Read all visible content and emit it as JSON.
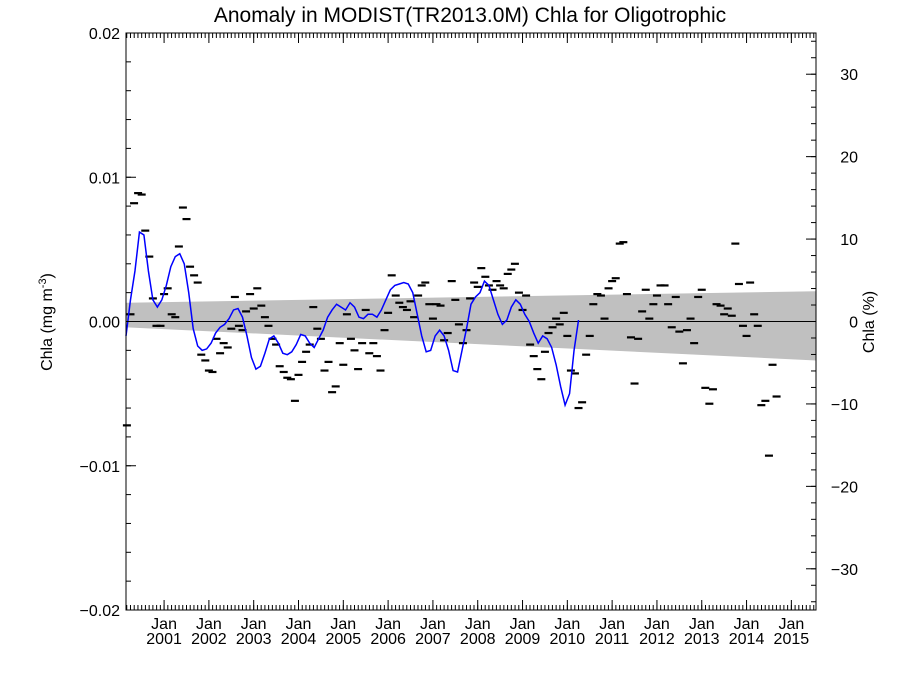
{
  "chart_data": {
    "type": "scatter",
    "title": "Anomaly in MODIST(TR2013.0M) Chla for Oligotrophic",
    "ylabel_left": "Chla (mg m",
    "ylabel_left_sup": "-3",
    "ylabel_left_close": ")",
    "ylabel_right": "Chla (%)",
    "ylim_left": [
      -0.02,
      0.02
    ],
    "ylim_right": [
      -35,
      35
    ],
    "xlim": [
      2000.15,
      2015.55
    ],
    "left_ticks": [
      {
        "value": 0.02,
        "label": "0.02"
      },
      {
        "value": 0.01,
        "label": "0.01"
      },
      {
        "value": 0.0,
        "label": "0.00"
      },
      {
        "value": -0.01,
        "label": "−0.01"
      },
      {
        "value": -0.02,
        "label": "−0.02"
      }
    ],
    "right_ticks": [
      {
        "value": 30,
        "label": "30"
      },
      {
        "value": 20,
        "label": "20"
      },
      {
        "value": 10,
        "label": "10"
      },
      {
        "value": 0,
        "label": "0"
      },
      {
        "value": -10,
        "label": "−10"
      },
      {
        "value": -20,
        "label": "−20"
      },
      {
        "value": -30,
        "label": "−30"
      }
    ],
    "x_ticks": [
      {
        "value": 2001,
        "month": "Jan",
        "year": "2001"
      },
      {
        "value": 2002,
        "month": "Jan",
        "year": "2002"
      },
      {
        "value": 2003,
        "month": "Jan",
        "year": "2003"
      },
      {
        "value": 2004,
        "month": "Jan",
        "year": "2004"
      },
      {
        "value": 2005,
        "month": "Jan",
        "year": "2005"
      },
      {
        "value": 2006,
        "month": "Jan",
        "year": "2006"
      },
      {
        "value": 2007,
        "month": "Jan",
        "year": "2007"
      },
      {
        "value": 2008,
        "month": "Jan",
        "year": "2008"
      },
      {
        "value": 2009,
        "month": "Jan",
        "year": "2009"
      },
      {
        "value": 2010,
        "month": "Jan",
        "year": "2010"
      },
      {
        "value": 2011,
        "month": "Jan",
        "year": "2011"
      },
      {
        "value": 2012,
        "month": "Jan",
        "year": "2012"
      },
      {
        "value": 2013,
        "month": "Jan",
        "year": "2013"
      },
      {
        "value": 2014,
        "month": "Jan",
        "year": "2014"
      },
      {
        "value": 2015,
        "month": "Jan",
        "year": "2015"
      }
    ],
    "trend_band": {
      "x_start": 2000.15,
      "x_end": 2015.55,
      "upper_start": 0.0013,
      "upper_end": 0.0021,
      "lower_start": -0.0004,
      "lower_end": -0.0027
    },
    "monthly_anomalies": [
      {
        "x": 2000.17,
        "y": -0.0072
      },
      {
        "x": 2000.25,
        "y": 0.0005
      },
      {
        "x": 2000.33,
        "y": 0.0082
      },
      {
        "x": 2000.42,
        "y": 0.0089
      },
      {
        "x": 2000.5,
        "y": 0.0088
      },
      {
        "x": 2000.58,
        "y": 0.0063
      },
      {
        "x": 2000.67,
        "y": 0.0045
      },
      {
        "x": 2000.75,
        "y": 0.0016
      },
      {
        "x": 2000.83,
        "y": -0.0003
      },
      {
        "x": 2000.92,
        "y": -0.0003
      },
      {
        "x": 2001.0,
        "y": 0.0019
      },
      {
        "x": 2001.08,
        "y": 0.0023
      },
      {
        "x": 2001.17,
        "y": 0.0005
      },
      {
        "x": 2001.25,
        "y": 0.0003
      },
      {
        "x": 2001.33,
        "y": 0.0052
      },
      {
        "x": 2001.42,
        "y": 0.0079
      },
      {
        "x": 2001.5,
        "y": 0.0071
      },
      {
        "x": 2001.58,
        "y": 0.0038
      },
      {
        "x": 2001.67,
        "y": 0.0032
      },
      {
        "x": 2001.75,
        "y": 0.0027
      },
      {
        "x": 2001.83,
        "y": -0.0023
      },
      {
        "x": 2001.92,
        "y": -0.0027
      },
      {
        "x": 2002.0,
        "y": -0.0034
      },
      {
        "x": 2002.08,
        "y": -0.0035
      },
      {
        "x": 2002.17,
        "y": -0.0012
      },
      {
        "x": 2002.25,
        "y": -0.0022
      },
      {
        "x": 2002.33,
        "y": -0.0015
      },
      {
        "x": 2002.42,
        "y": -0.0018
      },
      {
        "x": 2002.5,
        "y": -0.0005
      },
      {
        "x": 2002.58,
        "y": 0.0017
      },
      {
        "x": 2002.67,
        "y": -0.0003
      },
      {
        "x": 2002.75,
        "y": -0.0006
      },
      {
        "x": 2002.83,
        "y": 0.0007
      },
      {
        "x": 2002.92,
        "y": 0.0019
      },
      {
        "x": 2003.0,
        "y": 0.0009
      },
      {
        "x": 2003.08,
        "y": 0.0023
      },
      {
        "x": 2003.17,
        "y": 0.0011
      },
      {
        "x": 2003.25,
        "y": 0.0003
      },
      {
        "x": 2003.33,
        "y": -0.0003
      },
      {
        "x": 2003.42,
        "y": -0.0012
      },
      {
        "x": 2003.5,
        "y": -0.0016
      },
      {
        "x": 2003.58,
        "y": -0.0031
      },
      {
        "x": 2003.67,
        "y": -0.0035
      },
      {
        "x": 2003.75,
        "y": -0.0039
      },
      {
        "x": 2003.83,
        "y": -0.004
      },
      {
        "x": 2003.92,
        "y": -0.0055
      },
      {
        "x": 2004.0,
        "y": -0.0037
      },
      {
        "x": 2004.08,
        "y": -0.0028
      },
      {
        "x": 2004.17,
        "y": -0.0021
      },
      {
        "x": 2004.25,
        "y": -0.0016
      },
      {
        "x": 2004.33,
        "y": 0.001
      },
      {
        "x": 2004.42,
        "y": -0.0005
      },
      {
        "x": 2004.5,
        "y": -0.0012
      },
      {
        "x": 2004.58,
        "y": -0.0034
      },
      {
        "x": 2004.67,
        "y": -0.0028
      },
      {
        "x": 2004.75,
        "y": -0.0049
      },
      {
        "x": 2004.83,
        "y": -0.0045
      },
      {
        "x": 2004.92,
        "y": -0.0015
      },
      {
        "x": 2005.0,
        "y": -0.003
      },
      {
        "x": 2005.08,
        "y": 0.0005
      },
      {
        "x": 2005.17,
        "y": -0.0012
      },
      {
        "x": 2005.25,
        "y": -0.002
      },
      {
        "x": 2005.33,
        "y": -0.0033
      },
      {
        "x": 2005.42,
        "y": -0.0015
      },
      {
        "x": 2005.5,
        "y": 0.0008
      },
      {
        "x": 2005.58,
        "y": -0.0022
      },
      {
        "x": 2005.67,
        "y": -0.0015
      },
      {
        "x": 2005.75,
        "y": -0.0024
      },
      {
        "x": 2005.83,
        "y": -0.0034
      },
      {
        "x": 2005.92,
        "y": -0.0006
      },
      {
        "x": 2006.0,
        "y": 0.0006
      },
      {
        "x": 2006.08,
        "y": 0.0032
      },
      {
        "x": 2006.17,
        "y": 0.0018
      },
      {
        "x": 2006.25,
        "y": 0.0013
      },
      {
        "x": 2006.33,
        "y": 0.001
      },
      {
        "x": 2006.42,
        "y": 0.0008
      },
      {
        "x": 2006.5,
        "y": 0.0014
      },
      {
        "x": 2006.58,
        "y": 0.0003
      },
      {
        "x": 2006.67,
        "y": 0.0018
      },
      {
        "x": 2006.75,
        "y": 0.0025
      },
      {
        "x": 2006.83,
        "y": 0.0027
      },
      {
        "x": 2006.92,
        "y": 0.0012
      },
      {
        "x": 2007.0,
        "y": 0.0002
      },
      {
        "x": 2007.08,
        "y": 0.0012
      },
      {
        "x": 2007.17,
        "y": 0.0011
      },
      {
        "x": 2007.25,
        "y": -0.0013
      },
      {
        "x": 2007.33,
        "y": -0.0008
      },
      {
        "x": 2007.42,
        "y": 0.0028
      },
      {
        "x": 2007.5,
        "y": 0.0015
      },
      {
        "x": 2007.58,
        "y": -0.0002
      },
      {
        "x": 2007.67,
        "y": -0.0015
      },
      {
        "x": 2007.75,
        "y": -0.0006
      },
      {
        "x": 2007.83,
        "y": 0.0016
      },
      {
        "x": 2007.92,
        "y": 0.0027
      },
      {
        "x": 2008.0,
        "y": 0.0024
      },
      {
        "x": 2008.08,
        "y": 0.0037
      },
      {
        "x": 2008.17,
        "y": 0.0031
      },
      {
        "x": 2008.25,
        "y": 0.0025
      },
      {
        "x": 2008.33,
        "y": 0.0022
      },
      {
        "x": 2008.42,
        "y": 0.0028
      },
      {
        "x": 2008.5,
        "y": 0.0025
      },
      {
        "x": 2008.58,
        "y": 0.0023
      },
      {
        "x": 2008.67,
        "y": 0.0033
      },
      {
        "x": 2008.75,
        "y": 0.0036
      },
      {
        "x": 2008.83,
        "y": 0.004
      },
      {
        "x": 2008.92,
        "y": 0.002
      },
      {
        "x": 2009.0,
        "y": 0.0008
      },
      {
        "x": 2009.08,
        "y": 0.0018
      },
      {
        "x": 2009.17,
        "y": -0.0016
      },
      {
        "x": 2009.25,
        "y": -0.0024
      },
      {
        "x": 2009.33,
        "y": -0.0033
      },
      {
        "x": 2009.42,
        "y": -0.004
      },
      {
        "x": 2009.5,
        "y": -0.0021
      },
      {
        "x": 2009.58,
        "y": -0.0008
      },
      {
        "x": 2009.67,
        "y": -0.0004
      },
      {
        "x": 2009.75,
        "y": 0.0002
      },
      {
        "x": 2009.83,
        "y": -0.0002
      },
      {
        "x": 2009.92,
        "y": 0.0006
      },
      {
        "x": 2010.0,
        "y": -0.001
      },
      {
        "x": 2010.08,
        "y": -0.0034
      },
      {
        "x": 2010.17,
        "y": -0.0036
      },
      {
        "x": 2010.25,
        "y": -0.006
      },
      {
        "x": 2010.33,
        "y": -0.0056
      },
      {
        "x": 2010.42,
        "y": -0.0023
      },
      {
        "x": 2010.5,
        "y": -0.001
      },
      {
        "x": 2010.58,
        "y": 0.0012
      },
      {
        "x": 2010.67,
        "y": 0.0019
      },
      {
        "x": 2010.75,
        "y": 0.0018
      },
      {
        "x": 2010.83,
        "y": 0.0002
      },
      {
        "x": 2010.92,
        "y": 0.0023
      },
      {
        "x": 2011.0,
        "y": 0.0028
      },
      {
        "x": 2011.08,
        "y": 0.003
      },
      {
        "x": 2011.17,
        "y": 0.0054
      },
      {
        "x": 2011.25,
        "y": 0.0055
      },
      {
        "x": 2011.33,
        "y": 0.0019
      },
      {
        "x": 2011.42,
        "y": -0.0011
      },
      {
        "x": 2011.5,
        "y": -0.0043
      },
      {
        "x": 2011.58,
        "y": -0.0012
      },
      {
        "x": 2011.67,
        "y": 0.0007
      },
      {
        "x": 2011.75,
        "y": 0.0022
      },
      {
        "x": 2011.83,
        "y": 0.0002
      },
      {
        "x": 2011.92,
        "y": 0.0012
      },
      {
        "x": 2012.0,
        "y": 0.0018
      },
      {
        "x": 2012.08,
        "y": 0.0025
      },
      {
        "x": 2012.17,
        "y": 0.0025
      },
      {
        "x": 2012.25,
        "y": 0.0012
      },
      {
        "x": 2012.33,
        "y": -0.0004
      },
      {
        "x": 2012.42,
        "y": 0.0017
      },
      {
        "x": 2012.5,
        "y": -0.0007
      },
      {
        "x": 2012.58,
        "y": -0.0029
      },
      {
        "x": 2012.67,
        "y": -0.0006
      },
      {
        "x": 2012.75,
        "y": 0.0002
      },
      {
        "x": 2012.83,
        "y": -0.0015
      },
      {
        "x": 2012.92,
        "y": 0.0017
      },
      {
        "x": 2013.0,
        "y": 0.0022
      },
      {
        "x": 2013.08,
        "y": -0.0046
      },
      {
        "x": 2013.17,
        "y": -0.0057
      },
      {
        "x": 2013.25,
        "y": -0.0047
      },
      {
        "x": 2013.33,
        "y": 0.0012
      },
      {
        "x": 2013.42,
        "y": 0.0011
      },
      {
        "x": 2013.5,
        "y": 0.0005
      },
      {
        "x": 2013.58,
        "y": 0.0009
      },
      {
        "x": 2013.67,
        "y": 0.0004
      },
      {
        "x": 2013.75,
        "y": 0.0054
      },
      {
        "x": 2013.83,
        "y": 0.0026
      },
      {
        "x": 2013.92,
        "y": -0.0003
      },
      {
        "x": 2014.0,
        "y": -0.001
      },
      {
        "x": 2014.08,
        "y": 0.0027
      },
      {
        "x": 2014.17,
        "y": 0.0005
      },
      {
        "x": 2014.25,
        "y": -0.0003
      },
      {
        "x": 2014.33,
        "y": -0.0058
      },
      {
        "x": 2014.42,
        "y": -0.0055
      },
      {
        "x": 2014.5,
        "y": -0.0093
      },
      {
        "x": 2014.58,
        "y": -0.003
      },
      {
        "x": 2014.67,
        "y": -0.0052
      }
    ],
    "smoothed_series": {
      "color": "#0000ff",
      "points": [
        [
          2000.15,
          -0.001
        ],
        [
          2000.25,
          0.0015
        ],
        [
          2000.35,
          0.0035
        ],
        [
          2000.45,
          0.0062
        ],
        [
          2000.55,
          0.006
        ],
        [
          2000.65,
          0.0035
        ],
        [
          2000.75,
          0.0015
        ],
        [
          2000.85,
          0.001
        ],
        [
          2000.95,
          0.0015
        ],
        [
          2001.05,
          0.0025
        ],
        [
          2001.15,
          0.0038
        ],
        [
          2001.25,
          0.0045
        ],
        [
          2001.35,
          0.0047
        ],
        [
          2001.45,
          0.004
        ],
        [
          2001.55,
          0.002
        ],
        [
          2001.65,
          -0.0005
        ],
        [
          2001.75,
          -0.0017
        ],
        [
          2001.85,
          -0.002
        ],
        [
          2001.95,
          -0.0019
        ],
        [
          2002.05,
          -0.0015
        ],
        [
          2002.15,
          -0.0008
        ],
        [
          2002.25,
          -0.0004
        ],
        [
          2002.35,
          -0.0002
        ],
        [
          2002.45,
          0.0002
        ],
        [
          2002.55,
          0.0008
        ],
        [
          2002.65,
          0.0009
        ],
        [
          2002.75,
          0.0003
        ],
        [
          2002.85,
          -0.001
        ],
        [
          2002.95,
          -0.0025
        ],
        [
          2003.05,
          -0.0033
        ],
        [
          2003.15,
          -0.0031
        ],
        [
          2003.25,
          -0.0022
        ],
        [
          2003.35,
          -0.0012
        ],
        [
          2003.45,
          -0.001
        ],
        [
          2003.55,
          -0.0015
        ],
        [
          2003.65,
          -0.0022
        ],
        [
          2003.75,
          -0.0023
        ],
        [
          2003.85,
          -0.0021
        ],
        [
          2003.95,
          -0.0016
        ],
        [
          2004.05,
          -0.0009
        ],
        [
          2004.15,
          -0.001
        ],
        [
          2004.25,
          -0.0015
        ],
        [
          2004.35,
          -0.0018
        ],
        [
          2004.45,
          -0.0012
        ],
        [
          2004.55,
          -0.0006
        ],
        [
          2004.65,
          0.0003
        ],
        [
          2004.75,
          0.0008
        ],
        [
          2004.85,
          0.0012
        ],
        [
          2004.95,
          0.001
        ],
        [
          2005.05,
          0.0008
        ],
        [
          2005.15,
          0.0013
        ],
        [
          2005.25,
          0.001
        ],
        [
          2005.35,
          0.0003
        ],
        [
          2005.45,
          0.0002
        ],
        [
          2005.55,
          0.0005
        ],
        [
          2005.65,
          0.0005
        ],
        [
          2005.75,
          0.0003
        ],
        [
          2005.85,
          0.0008
        ],
        [
          2005.95,
          0.0015
        ],
        [
          2006.05,
          0.0022
        ],
        [
          2006.15,
          0.0025
        ],
        [
          2006.25,
          0.0026
        ],
        [
          2006.35,
          0.0027
        ],
        [
          2006.45,
          0.0026
        ],
        [
          2006.55,
          0.002
        ],
        [
          2006.65,
          0.0005
        ],
        [
          2006.75,
          -0.001
        ],
        [
          2006.85,
          -0.0021
        ],
        [
          2006.95,
          -0.002
        ],
        [
          2007.05,
          -0.001
        ],
        [
          2007.15,
          -0.0006
        ],
        [
          2007.25,
          -0.001
        ],
        [
          2007.35,
          -0.002
        ],
        [
          2007.45,
          -0.0034
        ],
        [
          2007.55,
          -0.0035
        ],
        [
          2007.65,
          -0.002
        ],
        [
          2007.75,
          -0.0005
        ],
        [
          2007.85,
          0.0012
        ],
        [
          2007.95,
          0.0017
        ],
        [
          2008.05,
          0.002
        ],
        [
          2008.15,
          0.0028
        ],
        [
          2008.25,
          0.0025
        ],
        [
          2008.35,
          0.0015
        ],
        [
          2008.45,
          0.0005
        ],
        [
          2008.55,
          -0.0002
        ],
        [
          2008.65,
          0.0001
        ],
        [
          2008.75,
          0.001
        ],
        [
          2008.85,
          0.0015
        ],
        [
          2008.95,
          0.0012
        ],
        [
          2009.05,
          0.0005
        ],
        [
          2009.15,
          0.0
        ],
        [
          2009.25,
          -0.0008
        ],
        [
          2009.35,
          -0.0015
        ],
        [
          2009.45,
          -0.001
        ],
        [
          2009.55,
          -0.0012
        ],
        [
          2009.65,
          -0.0018
        ],
        [
          2009.75,
          -0.003
        ],
        [
          2009.85,
          -0.0045
        ],
        [
          2009.95,
          -0.0058
        ],
        [
          2010.05,
          -0.005
        ],
        [
          2010.15,
          -0.002
        ],
        [
          2010.25,
          0.0001
        ]
      ]
    }
  }
}
